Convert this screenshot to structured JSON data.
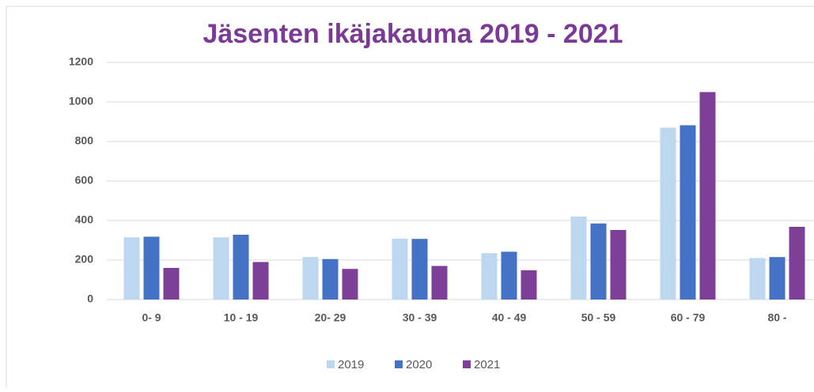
{
  "chart_data": {
    "type": "bar",
    "title": "Jäsenten ikäjakauma  2019 - 2021",
    "categories": [
      "0- 9",
      "10 - 19",
      "20- 29",
      "30 - 39",
      "40 - 49",
      "50 - 59",
      "60 - 79",
      "80 -"
    ],
    "series": [
      {
        "name": "2019",
        "color": "#bdd7ee",
        "values": [
          315,
          315,
          215,
          308,
          235,
          420,
          870,
          210
        ]
      },
      {
        "name": "2020",
        "color": "#4472c4",
        "values": [
          318,
          328,
          205,
          307,
          242,
          385,
          882,
          215
        ]
      },
      {
        "name": "2021",
        "color": "#7e3f98",
        "values": [
          160,
          190,
          155,
          170,
          148,
          352,
          1050,
          368
        ]
      }
    ],
    "ylim": [
      0,
      1200
    ],
    "yticks": [
      0,
      200,
      400,
      600,
      800,
      1000,
      1200
    ],
    "grid": true,
    "legend": "bottom"
  }
}
